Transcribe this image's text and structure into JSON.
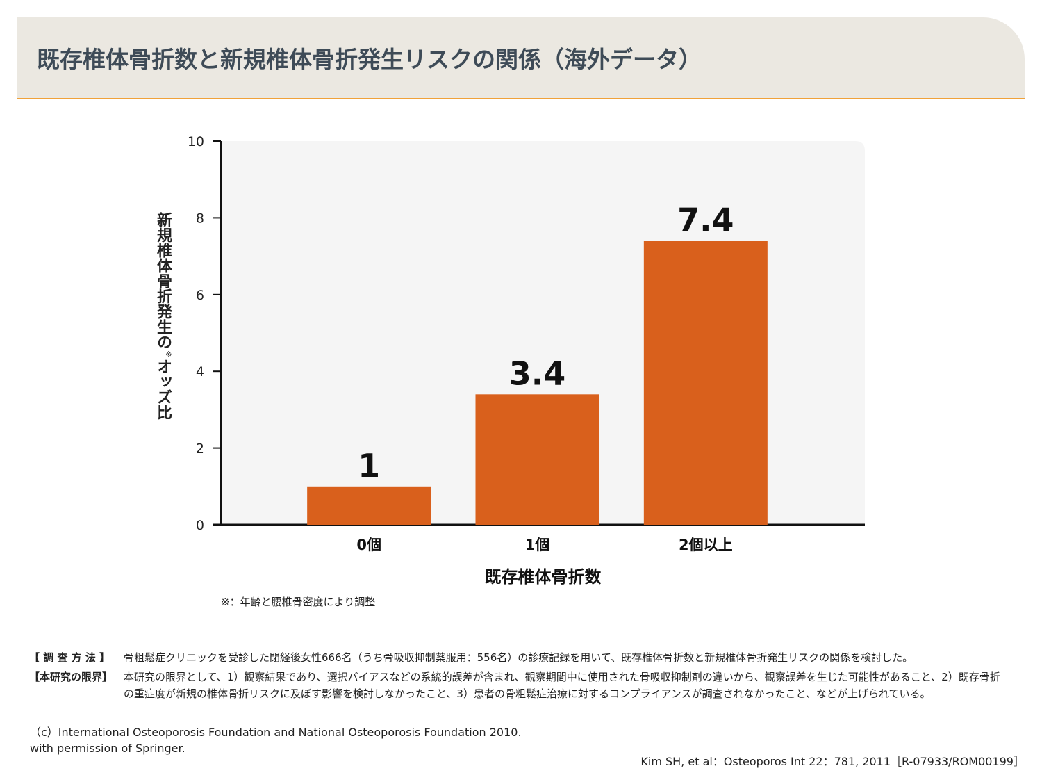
{
  "header": {
    "title": "既存椎体骨折数と新規椎体骨折発生リスクの関係（海外データ）"
  },
  "chart_data": {
    "type": "bar",
    "categories": [
      "0個",
      "1個",
      "2個以上"
    ],
    "values": [
      1,
      3.4,
      7.4
    ],
    "data_labels": [
      "1",
      "3.4",
      "7.4"
    ],
    "xlabel": "既存椎体骨折数",
    "ylabel": "新規椎体骨折発生の※オッズ比",
    "ylabel_main": "新規椎体骨折発生の",
    "ylabel_mark": "※",
    "ylabel_tail": "オッズ比",
    "ylim": [
      0,
      10
    ],
    "yticks": [
      0,
      2,
      4,
      6,
      8,
      10
    ],
    "grid": false,
    "bar_color": "#d9601c"
  },
  "note": "※：年齢と腰椎骨密度により調整",
  "method": {
    "label": "【 調 査 方 法 】",
    "text": "骨粗鬆症クリニックを受診した閉経後女性666名（うち骨吸収抑制薬服用：556名）の診療記録を用いて、既存椎体骨折数と新規椎体骨折発生リスクの関係を検討した。"
  },
  "limits": {
    "label": "【本研究の限界】",
    "text": "本研究の限界として、1）観察結果であり、選択バイアスなどの系統的誤差が含まれ、観察期間中に使用された骨吸収抑制剤の違いから、観察誤差を生じた可能性があること、2）既存骨折の重症度が新規の椎体骨折リスクに及ぼす影響を検討しなかったこと、3）患者の骨粗鬆症治療に対するコンプライアンスが調査されなかったこと、などが上げられている。"
  },
  "copyright": {
    "line1": "（c）International Osteoporosis Foundation and National Osteoporosis Foundation 2010.",
    "line2": "with permission of Springer."
  },
  "reference": "Kim SH, et al：Osteoporos Int 22：781, 2011［R-07933/ROM00199］"
}
